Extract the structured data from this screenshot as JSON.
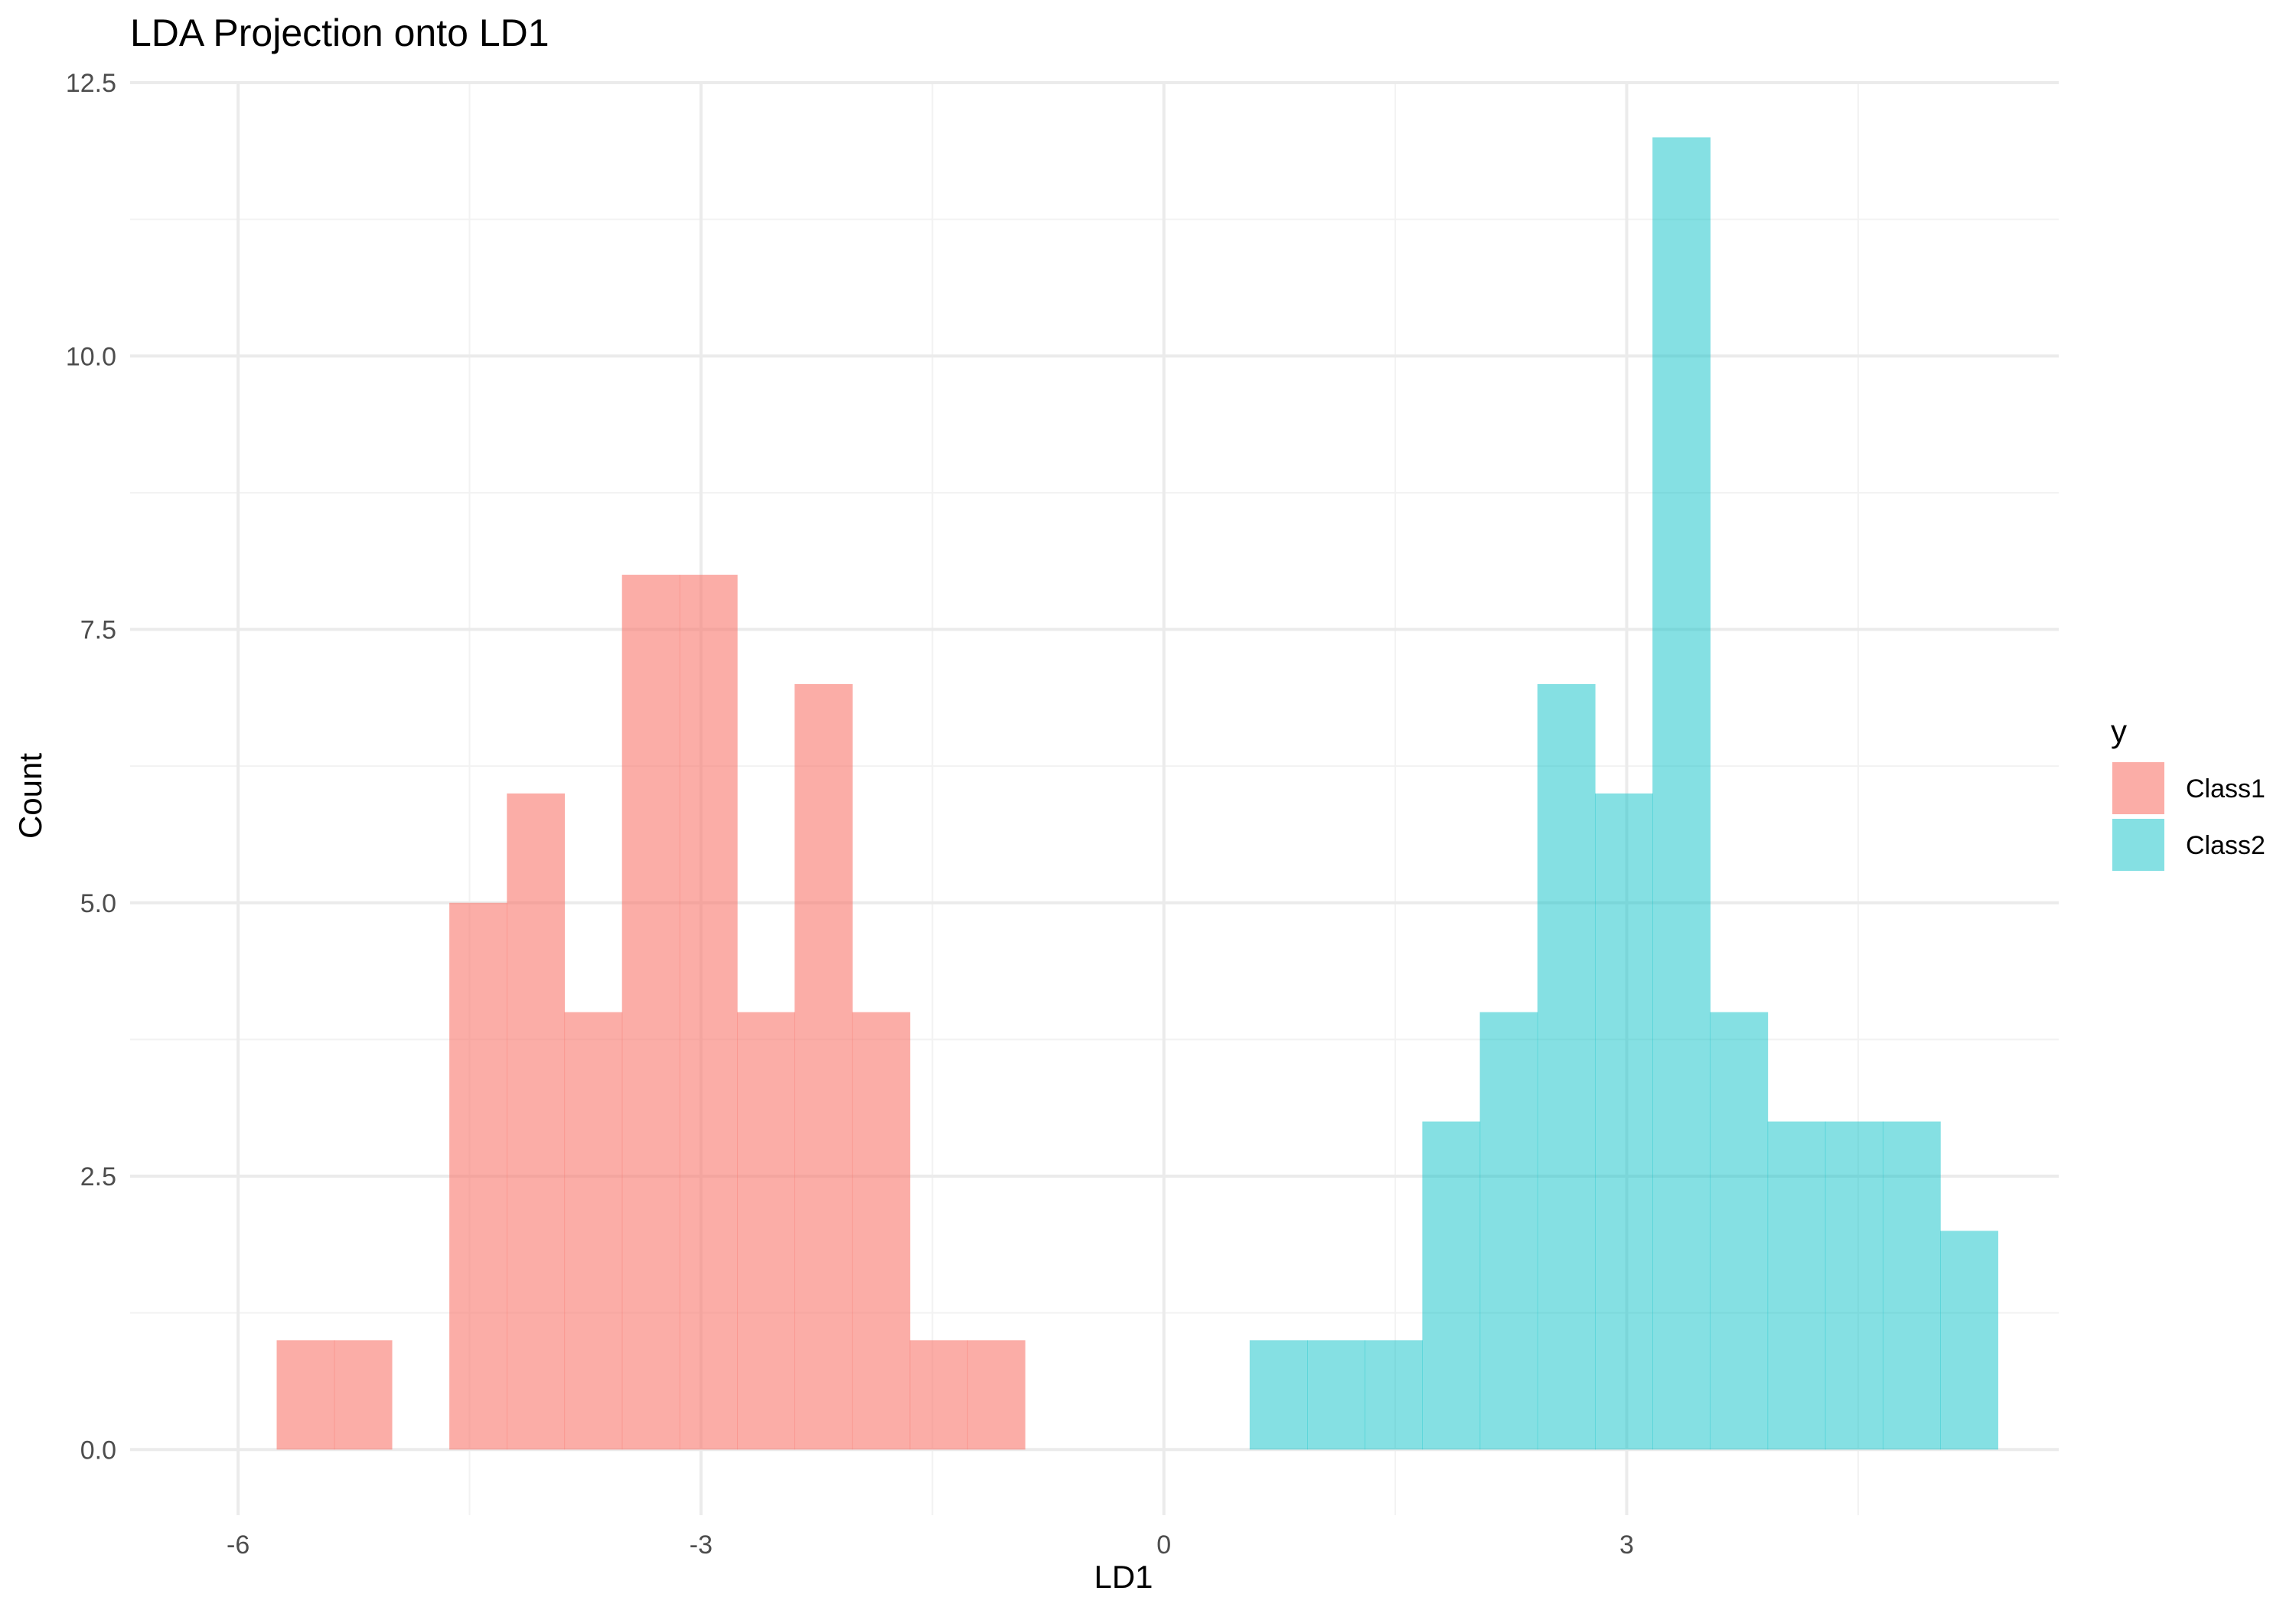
{
  "chart_data": {
    "type": "bar",
    "title": "LDA Projection onto LD1",
    "xlabel": "LD1",
    "ylabel": "Count",
    "xlim": [
      -6.7,
      5.8
    ],
    "ylim": [
      -0.6,
      12.5
    ],
    "x_ticks": [
      -6,
      -3,
      0,
      3
    ],
    "x_tick_labels": [
      "-6",
      "-3",
      "0",
      "3"
    ],
    "y_ticks": [
      0,
      2.5,
      5,
      7.5,
      10,
      12.5
    ],
    "y_tick_labels": [
      "0.0",
      "2.5",
      "5.0",
      "7.5",
      "10.0",
      "12.5"
    ],
    "grid": true,
    "legend": {
      "title": "y",
      "position": "right"
    },
    "bin_width": 0.373,
    "series": [
      {
        "name": "Class1",
        "color": "#F8766D",
        "opacity": 0.6,
        "bins": [
          {
            "x0": -5.75,
            "count": 1
          },
          {
            "x0": -5.377,
            "count": 1
          },
          {
            "x0": -4.631,
            "count": 5
          },
          {
            "x0": -4.258,
            "count": 6
          },
          {
            "x0": -3.885,
            "count": 4
          },
          {
            "x0": -3.512,
            "count": 8
          },
          {
            "x0": -3.139,
            "count": 8
          },
          {
            "x0": -2.766,
            "count": 4
          },
          {
            "x0": -2.393,
            "count": 7
          },
          {
            "x0": -2.02,
            "count": 4
          },
          {
            "x0": -1.647,
            "count": 1
          },
          {
            "x0": -1.274,
            "count": 1
          }
        ]
      },
      {
        "name": "Class2",
        "color": "#00BFC4",
        "opacity": 0.48,
        "bins": [
          {
            "x0": 0.556,
            "count": 1
          },
          {
            "x0": 0.929,
            "count": 1
          },
          {
            "x0": 1.302,
            "count": 1
          },
          {
            "x0": 1.675,
            "count": 3
          },
          {
            "x0": 2.048,
            "count": 4
          },
          {
            "x0": 2.421,
            "count": 7
          },
          {
            "x0": 2.794,
            "count": 6
          },
          {
            "x0": 3.167,
            "count": 12
          },
          {
            "x0": 3.54,
            "count": 4
          },
          {
            "x0": 3.913,
            "count": 3
          },
          {
            "x0": 4.286,
            "count": 3
          },
          {
            "x0": 4.659,
            "count": 3
          },
          {
            "x0": 5.032,
            "count": 2
          }
        ]
      }
    ]
  }
}
